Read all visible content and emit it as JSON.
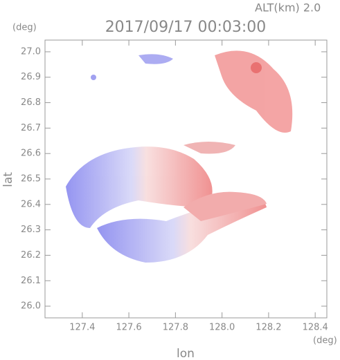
{
  "chart_data": {
    "type": "image",
    "title": "2017/09/17 00:03:00",
    "subtitle": "ALT(km) 2.0",
    "x_label": "lon",
    "y_label": "lat",
    "x_unit": "(deg)",
    "y_unit": "(deg)",
    "xlim": [
      127.24,
      128.45
    ],
    "ylim": [
      25.954,
      27.046
    ],
    "xticks": [
      127.4,
      127.6,
      127.8,
      {
        "value": 128.0,
        "label": "128.0"
      },
      128.2,
      128.4
    ],
    "yticks": [
      {
        "value": 26.0,
        "label": "26.0"
      },
      26.1,
      26.2,
      26.3,
      26.4,
      26.5,
      26.6,
      26.7,
      26.8,
      26.9,
      {
        "value": 27.0,
        "label": "27.0"
      }
    ]
  }
}
